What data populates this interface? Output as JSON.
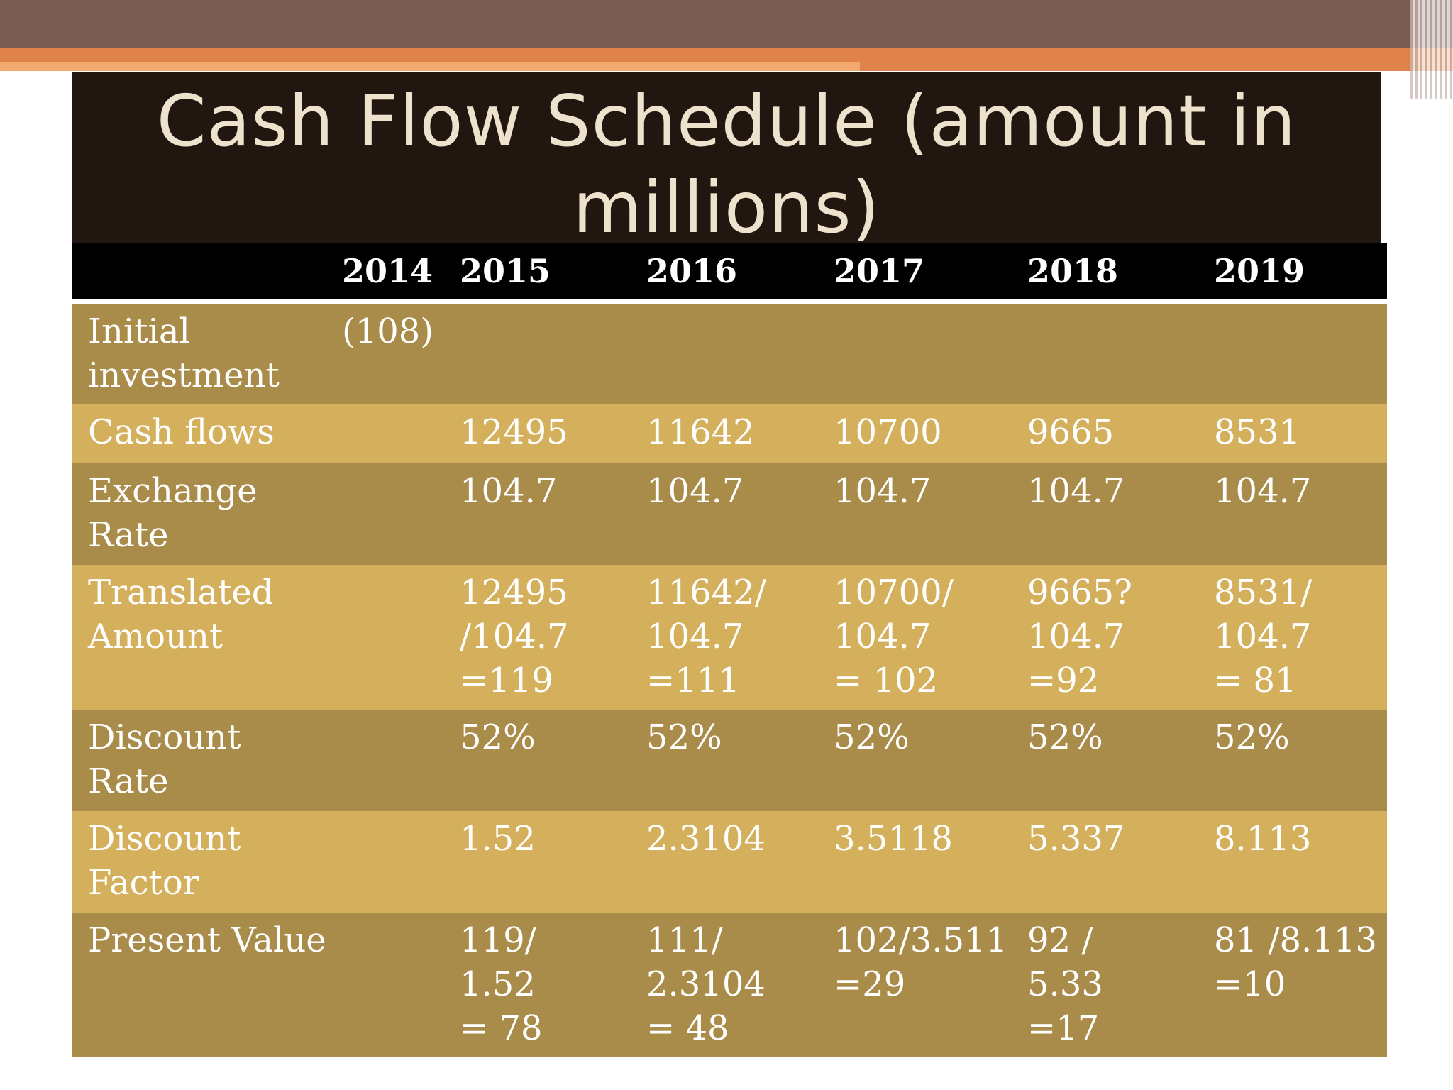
{
  "title": "Cash Flow Schedule (amount in millions)",
  "table": {
    "headers": [
      "",
      "2014",
      "2015",
      "2016",
      "2017",
      "2018",
      "2019"
    ],
    "rows": [
      {
        "label": "Initial\ninvestment",
        "cells": [
          "(108)",
          "",
          "",
          "",
          "",
          ""
        ]
      },
      {
        "label": "Cash flows",
        "cells": [
          "",
          "12495",
          "11642",
          "10700",
          "9665",
          "8531"
        ]
      },
      {
        "label": "Exchange\nRate",
        "cells": [
          "",
          "104.7",
          "104.7",
          "104.7",
          "104.7",
          "104.7"
        ]
      },
      {
        "label": "Translated\nAmount",
        "cells": [
          "",
          "12495\n/104.7\n=119",
          "11642/\n104.7\n=111",
          "10700/\n104.7\n= 102",
          "9665?\n104.7\n=92",
          "8531/\n104.7\n= 81"
        ]
      },
      {
        "label": "Discount\nRate",
        "cells": [
          "",
          "52%",
          "52%",
          "52%",
          "52%",
          "52%"
        ]
      },
      {
        "label": "Discount\nFactor",
        "cells": [
          "",
          "1.52",
          "2.3104",
          "3.5118",
          "5.337",
          "8.113"
        ]
      },
      {
        "label": "Present Value",
        "cells": [
          "",
          "119/\n1.52\n= 78",
          "111/\n2.3104\n= 48",
          "102/3.511\n=29",
          "92 /\n5.33\n=17",
          "81 /8.113\n=10"
        ]
      }
    ]
  },
  "colors": {
    "top_band": "#7a5c52",
    "accent_orange": "#e0834a",
    "title_background": "#221710",
    "row_dark": "#a98b4a",
    "row_light": "#d4b05c"
  }
}
